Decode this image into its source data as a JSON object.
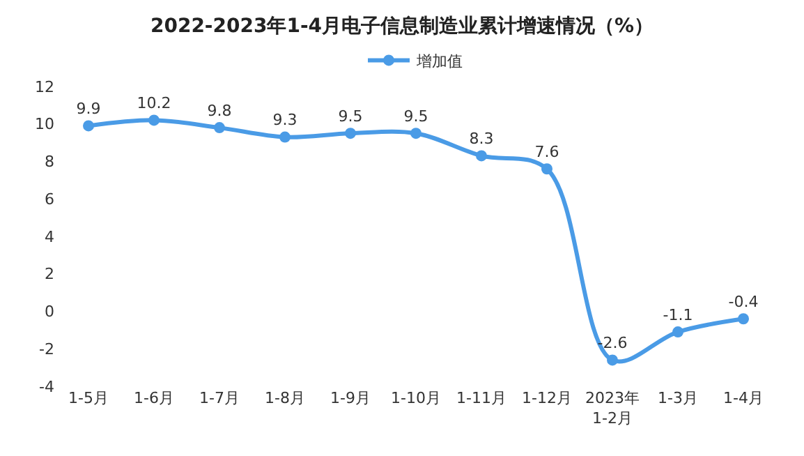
{
  "chart_data": {
    "type": "line",
    "title": "2022-2023年1-4月电子信息制造业累计增速情况（%）",
    "categories": [
      "1-5月",
      "1-6月",
      "1-7月",
      "1-8月",
      "1-9月",
      "1-10月",
      "1-11月",
      "1-12月",
      "2023年\n1-2月",
      "1-3月",
      "1-4月"
    ],
    "series": [
      {
        "name": "增加值",
        "color": "#4a9be6",
        "values": [
          9.9,
          10.2,
          9.8,
          9.3,
          9.5,
          9.5,
          8.3,
          7.6,
          -2.6,
          -1.1,
          -0.4
        ]
      }
    ],
    "ylim": [
      -4,
      12
    ],
    "yticks": [
      -4,
      -2,
      0,
      2,
      4,
      6,
      8,
      10,
      12
    ],
    "legend": "top",
    "marker": "circle",
    "line_style": "solid",
    "data_labels": true
  }
}
